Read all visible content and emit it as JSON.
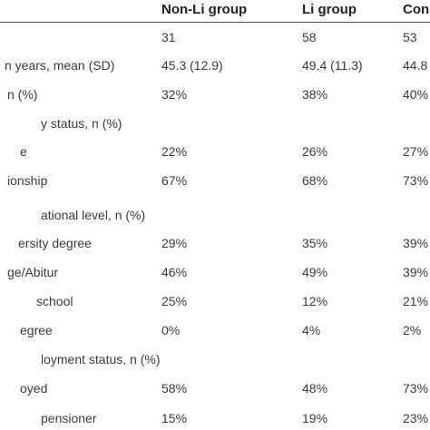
{
  "table": {
    "columns": [
      "Non-Li group",
      "Li group",
      "Con"
    ],
    "rows": [
      {
        "values": [
          "31",
          "58",
          "53"
        ]
      },
      {
        "label": "n years, mean (SD)",
        "values": [
          "45.3 (12.9)",
          "49.4 (11.3)",
          "44.8"
        ]
      },
      {
        "label": "n (%)",
        "values": [
          "32%",
          "38%",
          "40%"
        ]
      },
      {
        "label": "y status, n (%)"
      },
      {
        "label": "e",
        "values": [
          "22%",
          "26%",
          "27%"
        ]
      },
      {
        "label": "ionship",
        "values": [
          "67%",
          "68%",
          "73%"
        ]
      },
      {
        "label": "ational level, n (%)"
      },
      {
        "label": "ersity degree",
        "values": [
          "29%",
          "35%",
          "39%"
        ]
      },
      {
        "label": "ge/Abitur",
        "values": [
          "46%",
          "49%",
          "39%"
        ]
      },
      {
        "label": "school",
        "values": [
          "25%",
          "12%",
          "21%"
        ]
      },
      {
        "label": "egree",
        "values": [
          "0%",
          "4%",
          "2%"
        ]
      },
      {
        "label": "loyment status, n (%)"
      },
      {
        "label": "oyed",
        "values": [
          "58%",
          "48%",
          "73%"
        ]
      },
      {
        "label": "pensioner",
        "values": [
          "15%",
          "19%",
          "23%"
        ]
      }
    ]
  }
}
